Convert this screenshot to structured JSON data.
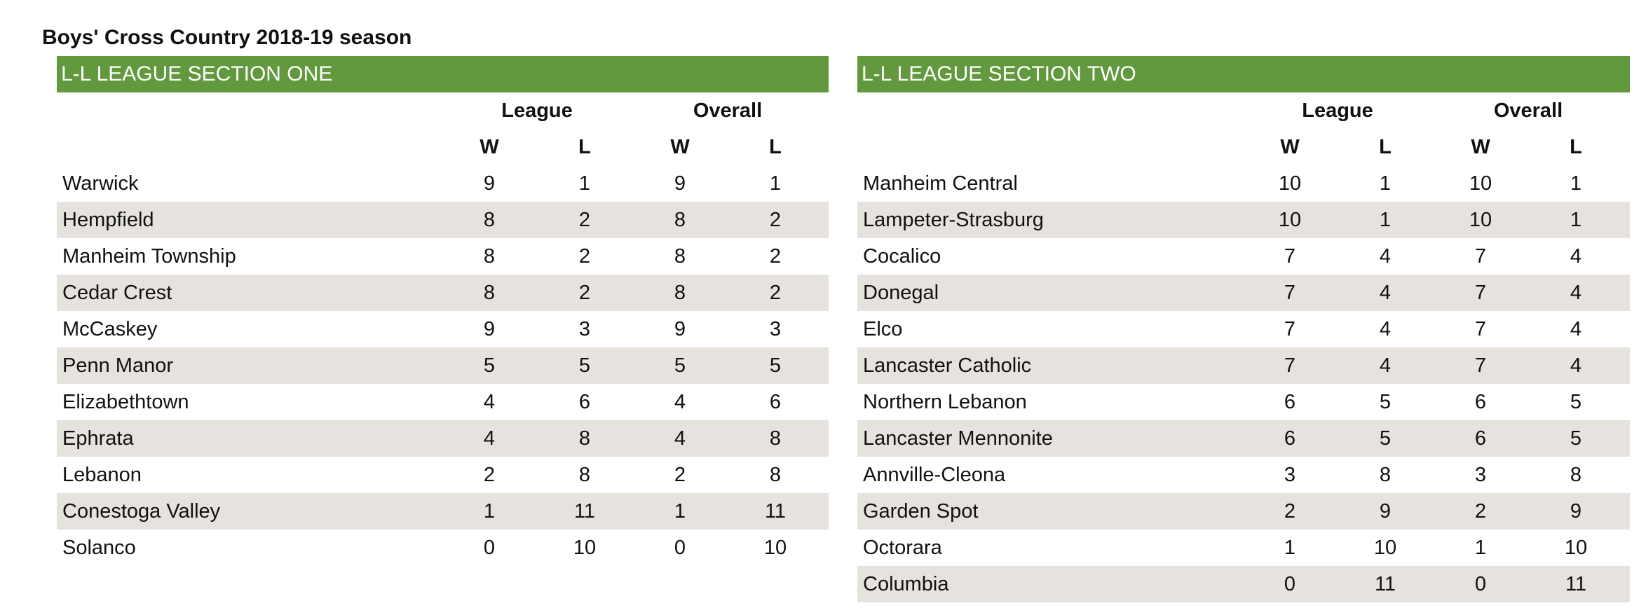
{
  "page": {
    "title": "Boys' Cross Country 2018-19 season"
  },
  "colors": {
    "header_bg": "#62993e",
    "alt_row": "#e6e3df"
  },
  "sections": [
    {
      "title": "L-L LEAGUE SECTION ONE",
      "group_labels": [
        "League",
        "Overall"
      ],
      "col_labels": [
        "W",
        "L",
        "W",
        "L"
      ],
      "teams": [
        {
          "name": "Warwick",
          "league_w": "9",
          "league_l": "1",
          "overall_w": "9",
          "overall_l": "1"
        },
        {
          "name": "Hempfield",
          "league_w": "8",
          "league_l": "2",
          "overall_w": "8",
          "overall_l": "2"
        },
        {
          "name": "Manheim Township",
          "league_w": "8",
          "league_l": "2",
          "overall_w": "8",
          "overall_l": "2"
        },
        {
          "name": "Cedar Crest",
          "league_w": "8",
          "league_l": "2",
          "overall_w": "8",
          "overall_l": "2"
        },
        {
          "name": "McCaskey",
          "league_w": "9",
          "league_l": "3",
          "overall_w": "9",
          "overall_l": "3"
        },
        {
          "name": "Penn Manor",
          "league_w": "5",
          "league_l": "5",
          "overall_w": "5",
          "overall_l": "5"
        },
        {
          "name": "Elizabethtown",
          "league_w": "4",
          "league_l": "6",
          "overall_w": "4",
          "overall_l": "6"
        },
        {
          "name": "Ephrata",
          "league_w": "4",
          "league_l": "8",
          "overall_w": "4",
          "overall_l": "8"
        },
        {
          "name": "Lebanon",
          "league_w": "2",
          "league_l": "8",
          "overall_w": "2",
          "overall_l": "8"
        },
        {
          "name": "Conestoga Valley",
          "league_w": "1",
          "league_l": "11",
          "overall_w": "1",
          "overall_l": "11"
        },
        {
          "name": "Solanco",
          "league_w": "0",
          "league_l": "10",
          "overall_w": "0",
          "overall_l": "10"
        }
      ]
    },
    {
      "title": "L-L LEAGUE SECTION TWO",
      "group_labels": [
        "League",
        "Overall"
      ],
      "col_labels": [
        "W",
        "L",
        "W",
        "L"
      ],
      "teams": [
        {
          "name": "Manheim Central",
          "league_w": "10",
          "league_l": "1",
          "overall_w": "10",
          "overall_l": "1"
        },
        {
          "name": "Lampeter-Strasburg",
          "league_w": "10",
          "league_l": "1",
          "overall_w": "10",
          "overall_l": "1"
        },
        {
          "name": "Cocalico",
          "league_w": "7",
          "league_l": "4",
          "overall_w": "7",
          "overall_l": "4"
        },
        {
          "name": "Donegal",
          "league_w": "7",
          "league_l": "4",
          "overall_w": "7",
          "overall_l": "4"
        },
        {
          "name": "Elco",
          "league_w": "7",
          "league_l": "4",
          "overall_w": "7",
          "overall_l": "4"
        },
        {
          "name": "Lancaster Catholic",
          "league_w": "7",
          "league_l": "4",
          "overall_w": "7",
          "overall_l": "4"
        },
        {
          "name": "Northern Lebanon",
          "league_w": "6",
          "league_l": "5",
          "overall_w": "6",
          "overall_l": "5"
        },
        {
          "name": "Lancaster Mennonite",
          "league_w": "6",
          "league_l": "5",
          "overall_w": "6",
          "overall_l": "5"
        },
        {
          "name": "Annville-Cleona",
          "league_w": "3",
          "league_l": "8",
          "overall_w": "3",
          "overall_l": "8"
        },
        {
          "name": "Garden Spot",
          "league_w": "2",
          "league_l": "9",
          "overall_w": "2",
          "overall_l": "9"
        },
        {
          "name": "Octorara",
          "league_w": "1",
          "league_l": "10",
          "overall_w": "1",
          "overall_l": "10"
        },
        {
          "name": "Columbia",
          "league_w": "0",
          "league_l": "11",
          "overall_w": "0",
          "overall_l": "11"
        }
      ]
    }
  ]
}
